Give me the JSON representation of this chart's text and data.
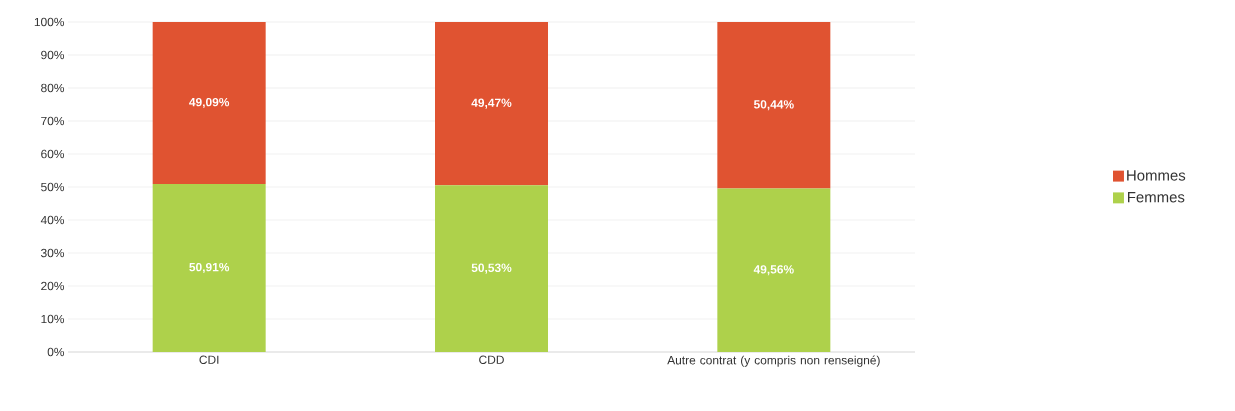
{
  "chart_data": {
    "type": "bar",
    "stacked": true,
    "categories": [
      "CDI",
      "CDD",
      "Autre contrat (y compris non renseigné)"
    ],
    "series": [
      {
        "name": "Femmes",
        "color": "#aed14b",
        "values": [
          50.91,
          50.53,
          49.56
        ],
        "value_labels": [
          "50,91%",
          "50,53%",
          "49,56%"
        ]
      },
      {
        "name": "Hommes",
        "color": "#e05331",
        "values": [
          49.09,
          49.47,
          50.44
        ],
        "value_labels": [
          "49,09%",
          "49,47%",
          "50,44%"
        ]
      }
    ],
    "ylim": [
      0,
      100
    ],
    "yticks": [
      {
        "value": 0,
        "label": "0%"
      },
      {
        "value": 10,
        "label": "10%"
      },
      {
        "value": 20,
        "label": "20%"
      },
      {
        "value": 30,
        "label": "30%"
      },
      {
        "value": 40,
        "label": "40%"
      },
      {
        "value": 50,
        "label": "50%"
      },
      {
        "value": 60,
        "label": "60%"
      },
      {
        "value": 70,
        "label": "70%"
      },
      {
        "value": 80,
        "label": "80%"
      },
      {
        "value": 90,
        "label": "90%"
      },
      {
        "value": 100,
        "label": "100%"
      }
    ],
    "grid": "y",
    "legend": "right"
  }
}
